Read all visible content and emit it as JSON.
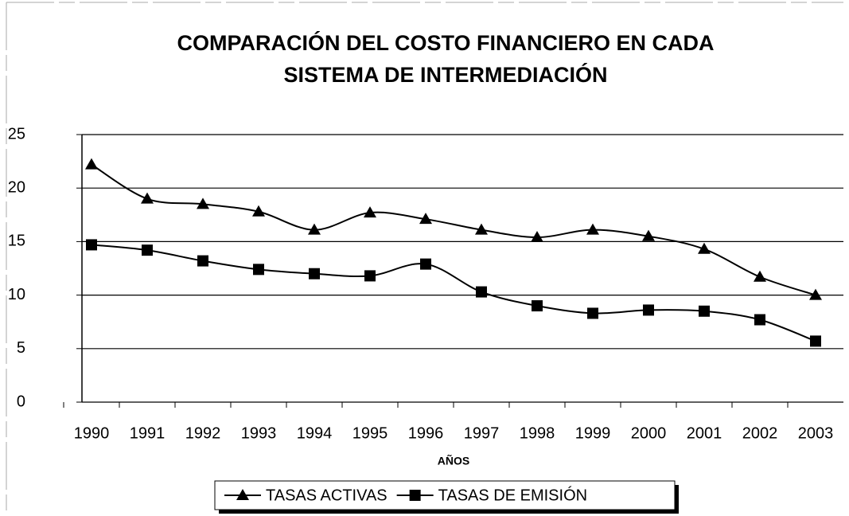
{
  "chart_data": {
    "type": "line",
    "title": "COMPARACIÓN DEL COSTO FINANCIERO EN CADA SISTEMA DE INTERMEDIACIÓN",
    "xlabel": "AÑOS",
    "categories": [
      "1990",
      "1991",
      "1992",
      "1993",
      "1994",
      "1995",
      "1996",
      "1997",
      "1998",
      "1999",
      "2000",
      "2001",
      "2002",
      "2003"
    ],
    "series": [
      {
        "name": "TASAS ACTIVAS",
        "color": "#000000",
        "marker": "triangle",
        "values": [
          22.2,
          19.0,
          18.5,
          17.8,
          16.1,
          17.7,
          17.1,
          16.1,
          15.4,
          16.1,
          15.5,
          14.3,
          11.7,
          10.0
        ]
      },
      {
        "name": "TASAS DE EMISIÓN",
        "color": "#000000",
        "marker": "square",
        "values": [
          14.7,
          14.2,
          13.2,
          12.4,
          12.0,
          11.8,
          12.9,
          10.3,
          9.0,
          8.3,
          8.6,
          8.5,
          7.7,
          5.7
        ]
      }
    ],
    "ylim": [
      0,
      25
    ],
    "yticks": [
      0,
      5,
      10,
      15,
      20,
      25
    ],
    "grid": true,
    "legend": "bottom"
  }
}
